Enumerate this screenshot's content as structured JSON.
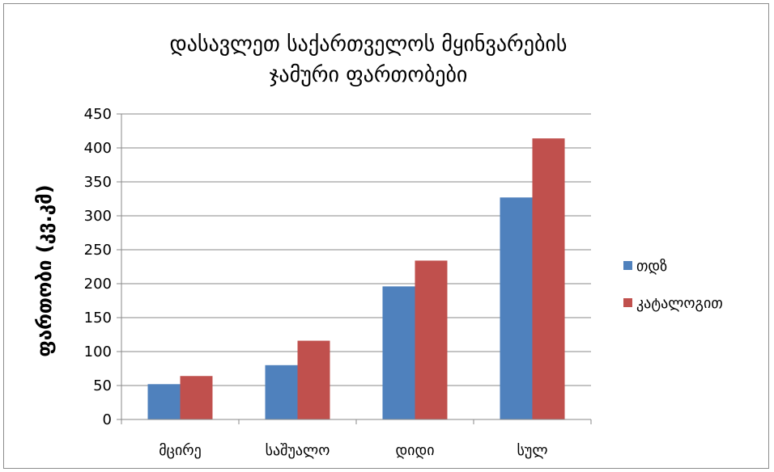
{
  "chart_data": {
    "type": "bar",
    "title_lines": [
      "დასავლეთ საქართველოს მყინვარების",
      "ჯამური ფართობები"
    ],
    "ylabel": "ფართობი (კვ.კმ)",
    "xlabel": "",
    "categories": [
      "მცირე",
      "საშუალო",
      "დიდი",
      "სულ"
    ],
    "series": [
      {
        "name": "თდზ",
        "values": [
          52,
          80,
          196,
          327
        ],
        "color": "#4f81bd"
      },
      {
        "name": "კატალოგით",
        "values": [
          64,
          116,
          234,
          414
        ],
        "color": "#c0504d"
      }
    ],
    "ylim": [
      0,
      450
    ],
    "yticks": [
      0,
      50,
      100,
      150,
      200,
      250,
      300,
      350,
      400,
      450
    ],
    "grid": true,
    "legend_position": "right"
  }
}
